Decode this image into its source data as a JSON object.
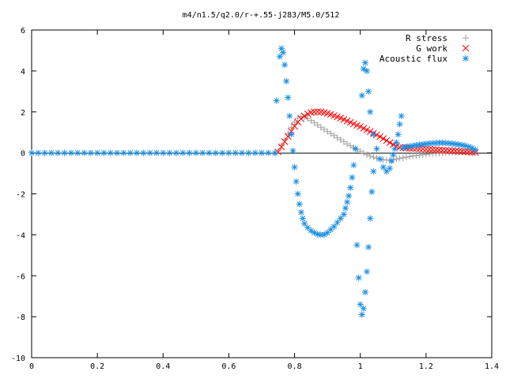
{
  "chart_data": {
    "type": "scatter",
    "title": "m4/n1.5/q2.0/r-+.55-j283/M5.0/512",
    "xlabel": "",
    "ylabel": "",
    "xlim": [
      0,
      1.4
    ],
    "ylim": [
      -10,
      6
    ],
    "grid": false,
    "legend_position": "top-right",
    "x_ticks": [
      "0",
      "0.2",
      "0.4",
      "0.6",
      "0.8",
      "1",
      "1.2",
      "1.4"
    ],
    "y_ticks": [
      "6",
      "4",
      "2",
      "0",
      "-2",
      "-4",
      "-6",
      "-8",
      "-10"
    ],
    "series": [
      {
        "name": "R stress",
        "marker": "plus",
        "color": "#a0a0a0",
        "points": [
          [
            0.75,
            0.1
          ],
          [
            0.76,
            0.35
          ],
          [
            0.77,
            0.65
          ],
          [
            0.78,
            0.95
          ],
          [
            0.79,
            1.25
          ],
          [
            0.8,
            1.5
          ],
          [
            0.81,
            1.7
          ],
          [
            0.82,
            1.78
          ],
          [
            0.83,
            1.76
          ],
          [
            0.84,
            1.68
          ],
          [
            0.85,
            1.58
          ],
          [
            0.86,
            1.47
          ],
          [
            0.87,
            1.36
          ],
          [
            0.88,
            1.25
          ],
          [
            0.89,
            1.15
          ],
          [
            0.9,
            1.04
          ],
          [
            0.91,
            0.94
          ],
          [
            0.92,
            0.84
          ],
          [
            0.93,
            0.74
          ],
          [
            0.94,
            0.64
          ],
          [
            0.95,
            0.54
          ],
          [
            0.96,
            0.44
          ],
          [
            0.97,
            0.35
          ],
          [
            0.98,
            0.26
          ],
          [
            0.99,
            0.17
          ],
          [
            1.0,
            0.08
          ],
          [
            1.01,
            0.0
          ],
          [
            1.02,
            -0.08
          ],
          [
            1.03,
            -0.15
          ],
          [
            1.04,
            -0.21
          ],
          [
            1.05,
            -0.26
          ],
          [
            1.06,
            -0.3
          ],
          [
            1.07,
            -0.33
          ],
          [
            1.08,
            -0.35
          ],
          [
            1.09,
            -0.35
          ],
          [
            1.1,
            -0.33
          ],
          [
            1.11,
            -0.3
          ],
          [
            1.12,
            -0.27
          ],
          [
            1.13,
            -0.24
          ],
          [
            1.14,
            -0.21
          ],
          [
            1.15,
            -0.18
          ],
          [
            1.16,
            -0.15
          ],
          [
            1.17,
            -0.13
          ],
          [
            1.18,
            -0.11
          ],
          [
            1.19,
            -0.09
          ],
          [
            1.2,
            -0.07
          ],
          [
            1.21,
            -0.05
          ],
          [
            1.22,
            -0.04
          ],
          [
            1.23,
            -0.03
          ],
          [
            1.24,
            -0.02
          ],
          [
            1.25,
            -0.01
          ],
          [
            1.26,
            0.0
          ],
          [
            1.27,
            0.01
          ],
          [
            1.28,
            0.02
          ],
          [
            1.29,
            0.02
          ],
          [
            1.3,
            0.03
          ],
          [
            1.31,
            0.03
          ],
          [
            1.32,
            0.03
          ],
          [
            1.33,
            0.02
          ],
          [
            1.34,
            0.02
          ],
          [
            1.35,
            0.01
          ]
        ]
      },
      {
        "name": "G work",
        "marker": "cross",
        "color": "#ff0000",
        "points": [
          [
            0.75,
            0.05
          ],
          [
            0.76,
            0.3
          ],
          [
            0.77,
            0.55
          ],
          [
            0.78,
            0.8
          ],
          [
            0.79,
            1.05
          ],
          [
            0.8,
            1.3
          ],
          [
            0.81,
            1.5
          ],
          [
            0.82,
            1.67
          ],
          [
            0.83,
            1.8
          ],
          [
            0.84,
            1.9
          ],
          [
            0.85,
            1.97
          ],
          [
            0.86,
            2.0
          ],
          [
            0.87,
            2.01
          ],
          [
            0.88,
            2.0
          ],
          [
            0.89,
            1.97
          ],
          [
            0.9,
            1.93
          ],
          [
            0.91,
            1.88
          ],
          [
            0.92,
            1.82
          ],
          [
            0.93,
            1.76
          ],
          [
            0.94,
            1.7
          ],
          [
            0.95,
            1.63
          ],
          [
            0.96,
            1.56
          ],
          [
            0.97,
            1.49
          ],
          [
            0.98,
            1.42
          ],
          [
            0.99,
            1.35
          ],
          [
            1.0,
            1.28
          ],
          [
            1.01,
            1.2
          ],
          [
            1.02,
            1.12
          ],
          [
            1.03,
            1.04
          ],
          [
            1.04,
            0.96
          ],
          [
            1.05,
            0.88
          ],
          [
            1.06,
            0.79
          ],
          [
            1.07,
            0.7
          ],
          [
            1.08,
            0.6
          ],
          [
            1.09,
            0.5
          ],
          [
            1.1,
            0.4
          ],
          [
            1.11,
            0.32
          ],
          [
            1.12,
            0.27
          ],
          [
            1.13,
            0.25
          ],
          [
            1.14,
            0.24
          ],
          [
            1.15,
            0.23
          ],
          [
            1.16,
            0.22
          ],
          [
            1.17,
            0.21
          ],
          [
            1.18,
            0.2
          ],
          [
            1.19,
            0.19
          ],
          [
            1.2,
            0.18
          ],
          [
            1.21,
            0.17
          ],
          [
            1.22,
            0.16
          ],
          [
            1.23,
            0.15
          ],
          [
            1.24,
            0.14
          ],
          [
            1.25,
            0.13
          ],
          [
            1.26,
            0.12
          ],
          [
            1.27,
            0.11
          ],
          [
            1.28,
            0.1
          ],
          [
            1.29,
            0.09
          ],
          [
            1.3,
            0.08
          ],
          [
            1.31,
            0.07
          ],
          [
            1.32,
            0.06
          ],
          [
            1.33,
            0.05
          ],
          [
            1.34,
            0.04
          ],
          [
            1.35,
            0.03
          ]
        ]
      },
      {
        "name": "Acoustic flux",
        "marker": "star",
        "color": "#1a8fe3",
        "points": [
          [
            0.0,
            0
          ],
          [
            0.02,
            0
          ],
          [
            0.04,
            0
          ],
          [
            0.06,
            0
          ],
          [
            0.08,
            0
          ],
          [
            0.1,
            0
          ],
          [
            0.12,
            0
          ],
          [
            0.14,
            0
          ],
          [
            0.16,
            0
          ],
          [
            0.18,
            0
          ],
          [
            0.2,
            0
          ],
          [
            0.22,
            0
          ],
          [
            0.24,
            0
          ],
          [
            0.26,
            0
          ],
          [
            0.28,
            0
          ],
          [
            0.3,
            0
          ],
          [
            0.32,
            0
          ],
          [
            0.34,
            0
          ],
          [
            0.36,
            0
          ],
          [
            0.38,
            0
          ],
          [
            0.4,
            0
          ],
          [
            0.42,
            0
          ],
          [
            0.44,
            0
          ],
          [
            0.46,
            0
          ],
          [
            0.48,
            0
          ],
          [
            0.5,
            0
          ],
          [
            0.52,
            0
          ],
          [
            0.54,
            0
          ],
          [
            0.56,
            0
          ],
          [
            0.58,
            0
          ],
          [
            0.6,
            0
          ],
          [
            0.62,
            0
          ],
          [
            0.64,
            0
          ],
          [
            0.66,
            0
          ],
          [
            0.68,
            0
          ],
          [
            0.7,
            0
          ],
          [
            0.72,
            0
          ],
          [
            0.74,
            0
          ],
          [
            0.745,
            2.55
          ],
          [
            0.755,
            4.7
          ],
          [
            0.76,
            5.1
          ],
          [
            0.765,
            4.9
          ],
          [
            0.77,
            4.3
          ],
          [
            0.775,
            3.5
          ],
          [
            0.78,
            2.7
          ],
          [
            0.785,
            1.8
          ],
          [
            0.79,
            0.9
          ],
          [
            0.795,
            0.1
          ],
          [
            0.8,
            -0.7
          ],
          [
            0.805,
            -1.4
          ],
          [
            0.81,
            -2.0
          ],
          [
            0.815,
            -2.5
          ],
          [
            0.82,
            -2.9
          ],
          [
            0.825,
            -3.2
          ],
          [
            0.83,
            -3.45
          ],
          [
            0.84,
            -3.65
          ],
          [
            0.85,
            -3.8
          ],
          [
            0.86,
            -3.9
          ],
          [
            0.87,
            -3.97
          ],
          [
            0.88,
            -4.0
          ],
          [
            0.89,
            -3.99
          ],
          [
            0.9,
            -3.9
          ],
          [
            0.91,
            -3.75
          ],
          [
            0.92,
            -3.6
          ],
          [
            0.93,
            -3.4
          ],
          [
            0.94,
            -3.2
          ],
          [
            0.95,
            -3.0
          ],
          [
            0.955,
            -2.7
          ],
          [
            0.96,
            -2.4
          ],
          [
            0.965,
            -2.1
          ],
          [
            0.97,
            -1.7
          ],
          [
            0.975,
            -1.2
          ],
          [
            0.98,
            -0.6
          ],
          [
            0.985,
            0.2
          ],
          [
            0.99,
            -4.5
          ],
          [
            0.995,
            -6.1
          ],
          [
            1.0,
            -7.4
          ],
          [
            1.005,
            -7.9
          ],
          [
            1.01,
            -7.6
          ],
          [
            1.015,
            -6.8
          ],
          [
            1.02,
            -5.8
          ],
          [
            1.025,
            -4.6
          ],
          [
            1.03,
            -3.2
          ],
          [
            1.035,
            -1.9
          ],
          [
            1.04,
            -0.9
          ],
          [
            1.005,
            2.8
          ],
          [
            1.01,
            4.1
          ],
          [
            1.015,
            4.4
          ],
          [
            1.02,
            4.0
          ],
          [
            1.025,
            3.0
          ],
          [
            1.03,
            2.0
          ],
          [
            1.04,
            0.9
          ],
          [
            1.05,
            0.2
          ],
          [
            1.06,
            -0.3
          ],
          [
            1.07,
            -0.7
          ],
          [
            1.08,
            -0.9
          ],
          [
            1.09,
            -0.75
          ],
          [
            1.095,
            -0.4
          ],
          [
            1.1,
            -0.1
          ],
          [
            1.105,
            0.2
          ],
          [
            1.11,
            0.5
          ],
          [
            1.115,
            0.9
          ],
          [
            1.12,
            1.4
          ],
          [
            1.125,
            1.8
          ],
          [
            1.13,
            0.25
          ],
          [
            1.14,
            0.3
          ],
          [
            1.15,
            0.32
          ],
          [
            1.16,
            0.35
          ],
          [
            1.17,
            0.38
          ],
          [
            1.18,
            0.4
          ],
          [
            1.19,
            0.42
          ],
          [
            1.2,
            0.44
          ],
          [
            1.21,
            0.46
          ],
          [
            1.22,
            0.47
          ],
          [
            1.23,
            0.48
          ],
          [
            1.24,
            0.49
          ],
          [
            1.25,
            0.49
          ],
          [
            1.26,
            0.48
          ],
          [
            1.27,
            0.47
          ],
          [
            1.28,
            0.45
          ],
          [
            1.29,
            0.43
          ],
          [
            1.3,
            0.41
          ],
          [
            1.31,
            0.38
          ],
          [
            1.32,
            0.35
          ],
          [
            1.33,
            0.3
          ],
          [
            1.34,
            0.24
          ],
          [
            1.35,
            0.15
          ]
        ]
      }
    ]
  }
}
